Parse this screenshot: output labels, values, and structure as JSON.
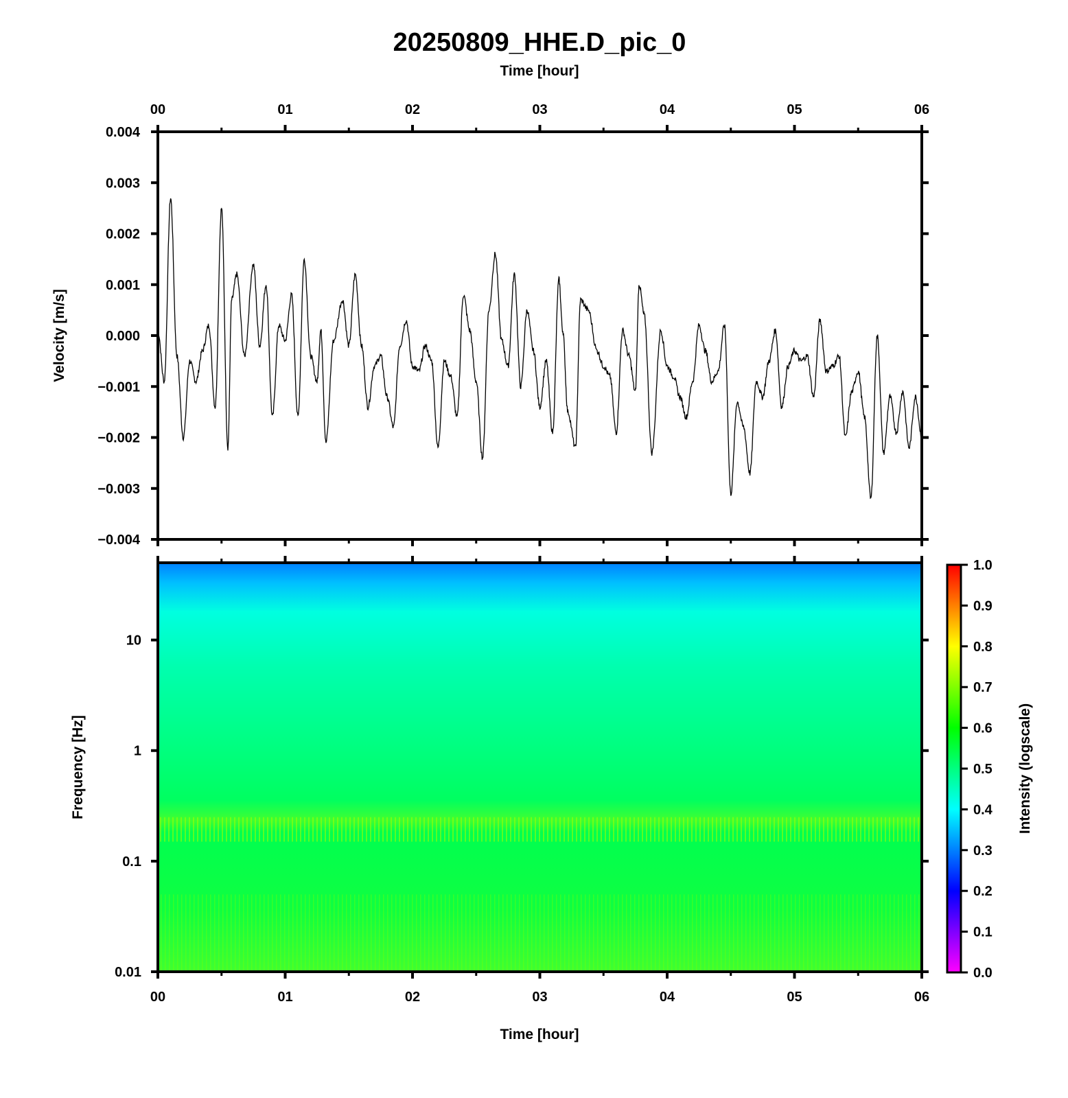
{
  "title": "20250809_HHE.D_pic_0",
  "top_xlabel": "Time [hour]",
  "bottom_xlabel": "Time [hour]",
  "chart_data": [
    {
      "type": "line",
      "name": "waveform",
      "xlabel": "Time [hour]",
      "ylabel": "Velocity [m/s]",
      "xlim": [
        0,
        6
      ],
      "ylim": [
        -0.004,
        0.004
      ],
      "x_ticks": [
        "00",
        "01",
        "02",
        "03",
        "04",
        "05",
        "06"
      ],
      "y_ticks": [
        "0.004",
        "0.003",
        "0.002",
        "0.001",
        "0.000",
        "−0.001",
        "−0.002",
        "−0.003",
        "−0.004"
      ],
      "grid": false,
      "series": [
        {
          "x": [
            0,
            0.05,
            0.1,
            0.15,
            0.2,
            0.25,
            0.3,
            0.35,
            0.4,
            0.45,
            0.5,
            0.55,
            0.58,
            0.62,
            0.68,
            0.75,
            0.8,
            0.85,
            0.9,
            0.95,
            1.0,
            1.05,
            1.1,
            1.15,
            1.2,
            1.25,
            1.28,
            1.32,
            1.38,
            1.45,
            1.5,
            1.55,
            1.6,
            1.65,
            1.7,
            1.75,
            1.8,
            1.85,
            1.9,
            1.95,
            2.0,
            2.05,
            2.1,
            2.15,
            2.2,
            2.25,
            2.3,
            2.35,
            2.4,
            2.45,
            2.5,
            2.55,
            2.6,
            2.65,
            2.7,
            2.75,
            2.8,
            2.85,
            2.9,
            2.95,
            3.0,
            3.05,
            3.1,
            3.15,
            3.18,
            3.22,
            3.28,
            3.32,
            3.38,
            3.45,
            3.5,
            3.55,
            3.6,
            3.65,
            3.7,
            3.75,
            3.78,
            3.82,
            3.88,
            3.95,
            4.0,
            4.05,
            4.1,
            4.15,
            4.2,
            4.25,
            4.3,
            4.35,
            4.4,
            4.45,
            4.5,
            4.55,
            4.6,
            4.65,
            4.7,
            4.75,
            4.8,
            4.85,
            4.9,
            4.95,
            5.0,
            5.05,
            5.1,
            5.15,
            5.2,
            5.25,
            5.3,
            5.35,
            5.4,
            5.45,
            5.5,
            5.55,
            5.6,
            5.65,
            5.7,
            5.75,
            5.8,
            5.85,
            5.9,
            5.95,
            6.0
          ],
          "y": [
            0.0001,
            -0.0009,
            0.0027,
            -0.0004,
            -0.002,
            -0.0005,
            -0.0009,
            -0.0003,
            0.0002,
            -0.0014,
            0.0025,
            -0.0022,
            0.0007,
            0.0012,
            -0.0004,
            0.0014,
            -0.0002,
            0.001,
            -0.0016,
            0.0002,
            -0.0001,
            0.0008,
            -0.0016,
            0.0015,
            -0.0004,
            -0.0009,
            0.0001,
            -0.0021,
            -0.0001,
            0.0007,
            -0.0002,
            0.0012,
            -0.0002,
            -0.0014,
            -0.0006,
            -0.0004,
            -0.0012,
            -0.0018,
            -0.0002,
            0.0003,
            -0.0006,
            -0.0007,
            -0.0002,
            -0.0005,
            -0.0022,
            -0.0005,
            -0.0008,
            -0.0016,
            0.0008,
            0.0001,
            -0.0009,
            -0.0024,
            0.0005,
            0.0016,
            -0.0001,
            -0.0006,
            0.0012,
            -0.001,
            0.0005,
            -0.0003,
            -0.0014,
            -0.0005,
            -0.0019,
            0.0011,
            0.0001,
            -0.0015,
            -0.0022,
            0.0007,
            0.0005,
            -0.0003,
            -0.0006,
            -0.0008,
            -0.0019,
            0.0001,
            -0.0004,
            -0.0011,
            0.001,
            0.0004,
            -0.0023,
            0.0001,
            -0.0006,
            -0.0008,
            -0.0012,
            -0.0016,
            -0.0009,
            0.0002,
            -0.0003,
            -0.0009,
            -0.0007,
            0.0002,
            -0.0031,
            -0.0013,
            -0.0018,
            -0.0027,
            -0.0009,
            -0.0012,
            -0.0005,
            0.0001,
            -0.0014,
            -0.0006,
            -0.0003,
            -0.0005,
            -0.0004,
            -0.0012,
            0.0003,
            -0.0007,
            -0.0006,
            -0.0004,
            -0.002,
            -0.0011,
            -0.0007,
            -0.0016,
            -0.0032,
            0.0,
            -0.0023,
            -0.0012,
            -0.0019,
            -0.0011,
            -0.0022,
            -0.0012,
            -0.002
          ],
          "color": "#000000"
        }
      ]
    },
    {
      "type": "heatmap",
      "name": "spectrogram",
      "xlabel": "Time [hour]",
      "ylabel": "Frequency [Hz]",
      "xlim": [
        0,
        6
      ],
      "ylim": [
        0.01,
        50
      ],
      "y_scale": "log",
      "x_ticks": [
        "00",
        "01",
        "02",
        "03",
        "04",
        "05",
        "06"
      ],
      "y_ticks": [
        "10",
        "1",
        "0.1",
        "0.01"
      ],
      "colorbar": {
        "label": "Intensity (logscale)",
        "range": [
          0.0,
          1.0
        ],
        "ticks": [
          "1.0",
          "0.9",
          "0.8",
          "0.7",
          "0.6",
          "0.5",
          "0.4",
          "0.3",
          "0.2",
          "0.1",
          "0.0"
        ],
        "colormap": [
          "#ff00ff",
          "#8000ff",
          "#0000ff",
          "#0080ff",
          "#00ffff",
          "#00ff80",
          "#00ff00",
          "#80ff00",
          "#ffff00",
          "#ff8000",
          "#ff0000"
        ]
      },
      "intensity_profile": [
        {
          "freq_hz": 50,
          "value": 0.33
        },
        {
          "freq_hz": 20,
          "value": 0.42
        },
        {
          "freq_hz": 10,
          "value": 0.47
        },
        {
          "freq_hz": 1,
          "value": 0.52
        },
        {
          "freq_hz": 0.4,
          "value": 0.58
        },
        {
          "freq_hz": 0.2,
          "value": 0.64
        },
        {
          "freq_hz": 0.1,
          "value": 0.58
        },
        {
          "freq_hz": 0.01,
          "value": 0.62
        }
      ]
    }
  ]
}
